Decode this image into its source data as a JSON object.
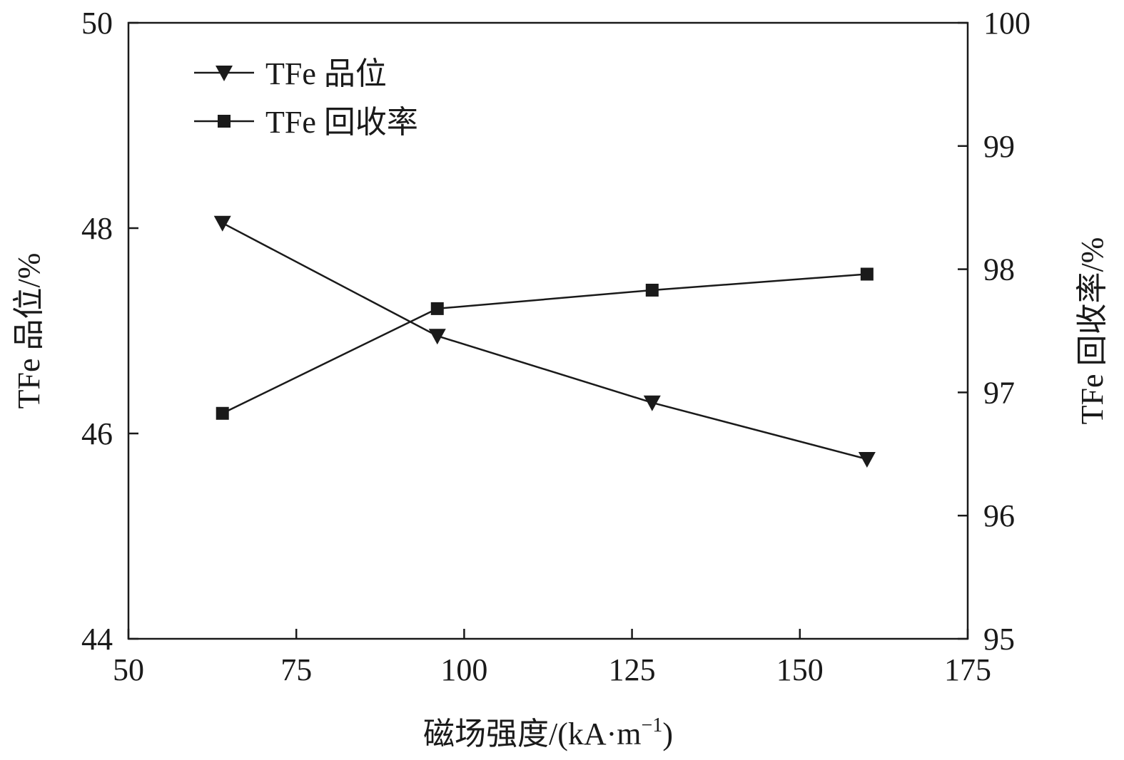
{
  "chart_data": {
    "type": "line",
    "x": [
      64,
      96,
      128,
      160
    ],
    "xlabel": "磁场强度/(kA·m",
    "xlabel_sup": "−1",
    "xlabel_end": ")",
    "xlim": [
      50,
      175
    ],
    "xticks": [
      50,
      75,
      100,
      125,
      150,
      175
    ],
    "ylabel_left": "TFe 品位/%",
    "ylim_left": [
      44,
      50
    ],
    "yticks_left": [
      44,
      46,
      48,
      50
    ],
    "ylabel_right": "TFe 回收率/%",
    "ylim_right": [
      95,
      100
    ],
    "yticks_right": [
      95,
      96,
      97,
      98,
      99,
      100
    ],
    "legend_position": "top-left",
    "series": [
      {
        "name": "TFe 品位",
        "axis": "left",
        "marker": "triangle-down",
        "values": [
          48.05,
          46.95,
          46.3,
          45.75
        ]
      },
      {
        "name": "TFe 回收率",
        "axis": "right",
        "marker": "square",
        "values": [
          96.83,
          97.68,
          97.83,
          97.96
        ]
      }
    ],
    "grid": false,
    "color": "#1a1a1a"
  }
}
